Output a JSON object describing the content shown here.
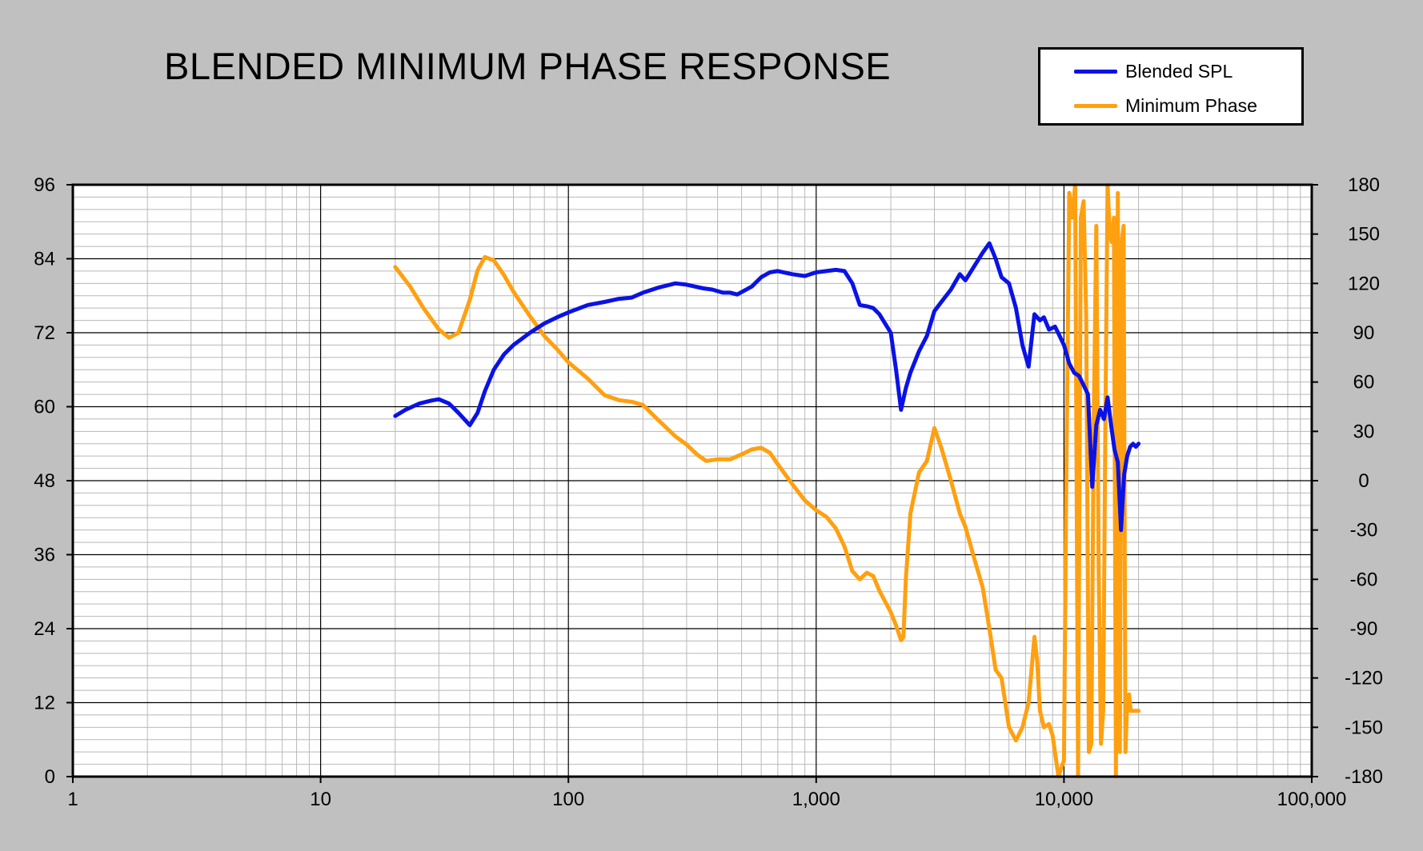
{
  "title": "BLENDED MINIMUM PHASE RESPONSE",
  "legend": [
    {
      "name": "Blended SPL",
      "color": "#0a12e6"
    },
    {
      "name": "Minimum Phase",
      "color": "#ffa010"
    }
  ],
  "chart_data": {
    "type": "line",
    "title": "BLENDED MINIMUM PHASE RESPONSE",
    "xlabel": "",
    "ylabel": "",
    "y2label": "",
    "xscale": "log",
    "xlim": [
      1,
      100000
    ],
    "ylim": [
      0,
      96
    ],
    "y2lim": [
      -180,
      180
    ],
    "grid": true,
    "legend_position": "top-right",
    "x_tick_labels": [
      "1",
      "10",
      "100",
      "1,000",
      "10,000",
      "100,000"
    ],
    "y_tick_labels": [
      "0",
      "12",
      "24",
      "36",
      "48",
      "60",
      "72",
      "84",
      "96"
    ],
    "y2_tick_labels": [
      "-180",
      "-150",
      "-120",
      "-90",
      "-60",
      "-30",
      "0",
      "30",
      "60",
      "90",
      "120",
      "150",
      "180"
    ],
    "series": [
      {
        "name": "Blended SPL",
        "axis": "left",
        "color": "#0a12e6",
        "x": [
          20,
          22,
          25,
          28,
          30,
          33,
          36,
          40,
          43,
          46,
          50,
          55,
          60,
          70,
          80,
          90,
          100,
          120,
          140,
          160,
          180,
          200,
          230,
          270,
          300,
          350,
          380,
          420,
          450,
          480,
          550,
          600,
          650,
          700,
          800,
          900,
          1000,
          1100,
          1200,
          1300,
          1400,
          1500,
          1600,
          1700,
          1800,
          2000,
          2100,
          2200,
          2300,
          2400,
          2600,
          2800,
          3000,
          3200,
          3500,
          3800,
          4000,
          4300,
          4700,
          5000,
          5300,
          5600,
          6000,
          6400,
          6800,
          7200,
          7600,
          8000,
          8300,
          8700,
          9200,
          9600,
          10000,
          10500,
          11000,
          11500,
          12000,
          12500,
          13000,
          13500,
          14000,
          14500,
          15000,
          15500,
          16000,
          16500,
          17000,
          17500,
          18000,
          18500,
          19000,
          19500,
          20000
        ],
        "y": [
          58.5,
          59.5,
          60.5,
          61.0,
          61.2,
          60.5,
          59.0,
          57.0,
          59.0,
          62.5,
          66.0,
          68.5,
          70.0,
          72.0,
          73.5,
          74.5,
          75.3,
          76.5,
          77.0,
          77.5,
          77.7,
          78.5,
          79.3,
          80.0,
          79.8,
          79.2,
          79.0,
          78.5,
          78.5,
          78.2,
          79.5,
          81.0,
          81.8,
          82.0,
          81.5,
          81.2,
          81.8,
          82.0,
          82.2,
          82.0,
          80.0,
          76.5,
          76.3,
          76.0,
          75.0,
          72.0,
          66.0,
          59.5,
          63.0,
          65.5,
          69.0,
          71.5,
          75.5,
          77.0,
          79.0,
          81.5,
          80.5,
          82.5,
          85.0,
          86.5,
          84.0,
          81.0,
          80.0,
          76.0,
          70.0,
          66.5,
          75.0,
          74.0,
          74.5,
          72.5,
          73.0,
          71.5,
          70.0,
          67.0,
          65.5,
          65.0,
          63.5,
          62.0,
          47.0,
          57.0,
          59.5,
          58.0,
          61.5,
          57.0,
          53.0,
          51.0,
          40.0,
          49.0,
          52.0,
          53.5,
          54.0,
          53.5,
          54.0
        ]
      },
      {
        "name": "Minimum Phase",
        "axis": "right",
        "color": "#ffa010",
        "x": [
          20,
          23,
          26,
          30,
          33,
          36,
          40,
          43,
          46,
          50,
          55,
          60,
          70,
          80,
          90,
          100,
          120,
          140,
          160,
          180,
          200,
          230,
          270,
          300,
          330,
          360,
          400,
          450,
          500,
          550,
          600,
          650,
          700,
          800,
          900,
          1000,
          1100,
          1200,
          1300,
          1400,
          1500,
          1600,
          1700,
          1800,
          2000,
          2100,
          2200,
          2250,
          2300,
          2400,
          2600,
          2800,
          3000,
          3200,
          3500,
          3800,
          4000,
          4300,
          4700,
          5000,
          5300,
          5600,
          6000,
          6400,
          6800,
          7200,
          7600,
          7800,
          8000,
          8300,
          8700,
          9000,
          9500,
          10000,
          10200,
          10500,
          10800,
          11100,
          11400,
          11700,
          12000,
          12300,
          12600,
          12900,
          13200,
          13500,
          13800,
          14100,
          14400,
          14700,
          15000,
          15300,
          15600,
          15900,
          16200,
          16500,
          16800,
          17100,
          17400,
          17700,
          18000,
          18300,
          18600,
          18900,
          19200,
          19600,
          20000
        ],
        "y": [
          130,
          118,
          105,
          92,
          87,
          90,
          110,
          128,
          136,
          134,
          125,
          115,
          100,
          88,
          80,
          72,
          62,
          52,
          49,
          48,
          46,
          37,
          27,
          22,
          16,
          12,
          13,
          13,
          16,
          19,
          20,
          17,
          10,
          -2,
          -12,
          -18,
          -22,
          -29,
          -40,
          -55,
          -60,
          -56,
          -58,
          -67,
          -80,
          -88,
          -97,
          -95,
          -60,
          -20,
          5,
          12,
          32,
          20,
          0,
          -20,
          -28,
          -45,
          -65,
          -90,
          -115,
          -120,
          -150,
          -158,
          -150,
          -135,
          -95,
          -110,
          -140,
          -150,
          -148,
          -155,
          -180,
          -170,
          -10,
          175,
          160,
          180,
          -180,
          160,
          170,
          100,
          -165,
          -160,
          40,
          155,
          -50,
          -160,
          -140,
          40,
          180,
          150,
          145,
          160,
          -180,
          175,
          -165,
          145,
          155,
          -165,
          -135,
          -130,
          -140,
          -140,
          -140,
          -140,
          -140
        ]
      }
    ]
  }
}
